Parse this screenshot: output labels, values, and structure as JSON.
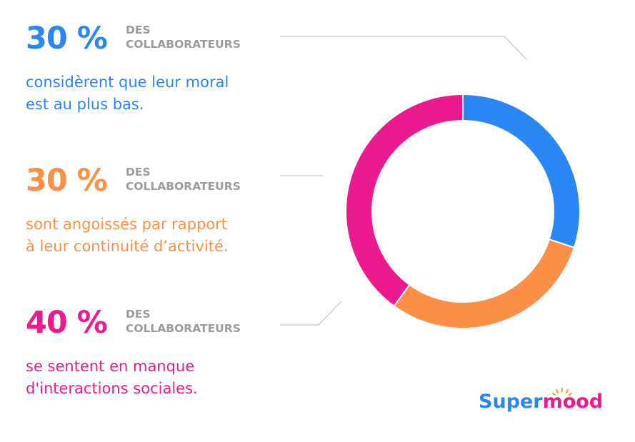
{
  "stats": [
    {
      "percent": "30 %",
      "unit_line1": "DES",
      "unit_line2": "COLLABORATEURS",
      "desc_line1": "considèrent que leur moral",
      "desc_line2": "est au plus bas.",
      "color": "#2a86f3"
    },
    {
      "percent": "30 %",
      "unit_line1": "DES",
      "unit_line2": "COLLABORATEURS",
      "desc_line1": "sont angoissés par rapport",
      "desc_line2": "à leur continuité d’activité.",
      "color": "#fb8f46"
    },
    {
      "percent": "40 %",
      "unit_line1": "DES",
      "unit_line2": "COLLABORATEURS",
      "desc_line1": "se sentent en manque",
      "desc_line2": "d'interactions sociales.",
      "color": "#ec1a8c"
    }
  ],
  "chart_data": {
    "type": "pie",
    "donut": true,
    "categories": [
      "considèrent que leur moral est au plus bas",
      "sont angoissés par rapport à leur continuité d’activité",
      "se sentent en manque d'interactions sociales"
    ],
    "values": [
      30,
      30,
      40
    ],
    "unit": "%",
    "colors": [
      "#2a86f3",
      "#fb8f46",
      "#ec1a8c"
    ],
    "title": "",
    "legend": "left"
  },
  "brand": {
    "part1": "Super",
    "part2": "mood",
    "sun_color": "#f5a623"
  }
}
